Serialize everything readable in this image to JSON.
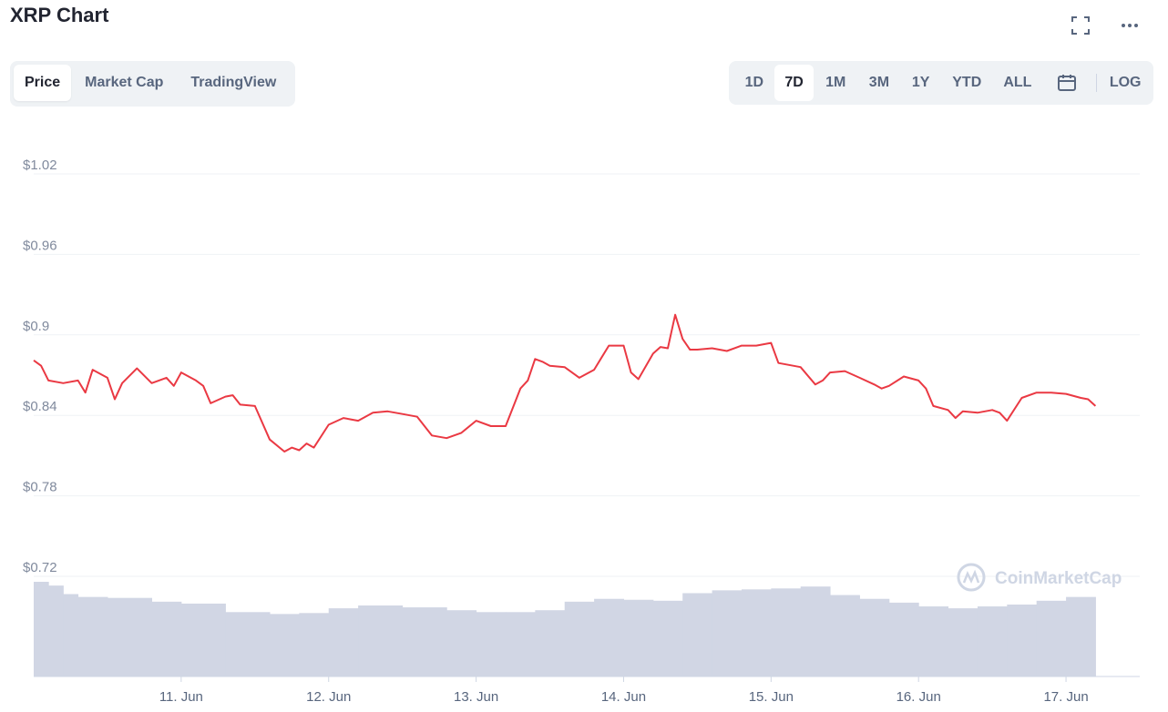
{
  "header": {
    "title": "XRP Chart",
    "fullscreen_icon": "fullscreen-icon",
    "more_icon": "more-horizontal-icon"
  },
  "tabs": [
    {
      "label": "Price",
      "active": true
    },
    {
      "label": "Market Cap",
      "active": false
    },
    {
      "label": "TradingView",
      "active": false
    }
  ],
  "ranges": [
    {
      "label": "1D",
      "active": false
    },
    {
      "label": "7D",
      "active": true
    },
    {
      "label": "1M",
      "active": false
    },
    {
      "label": "3M",
      "active": false
    },
    {
      "label": "1Y",
      "active": false
    },
    {
      "label": "YTD",
      "active": false
    },
    {
      "label": "ALL",
      "active": false
    }
  ],
  "calendar_icon": "calendar-icon",
  "log_label": "LOG",
  "watermark": "CoinMarketCap",
  "colors": {
    "line": "#ea3943",
    "volume": "#d1d6e4",
    "grid": "#eff2f5",
    "tab_bg": "#eff2f5"
  },
  "chart_data": {
    "type": "line",
    "title": "",
    "xlabel": "",
    "ylabel": "",
    "y_ticks": [
      "$1.02",
      "$0.96",
      "$0.9",
      "$0.84",
      "$0.78",
      "$0.72"
    ],
    "y_tick_values": [
      1.02,
      0.96,
      0.9,
      0.84,
      0.78,
      0.72
    ],
    "ylim": [
      0.72,
      1.02
    ],
    "x_ticks": [
      "11. Jun",
      "12. Jun",
      "13. Jun",
      "14. Jun",
      "15. Jun",
      "16. Jun",
      "17. Jun"
    ],
    "x_tick_values": [
      1,
      2,
      3,
      4,
      5,
      6,
      7
    ],
    "xlim": [
      0,
      7.5
    ],
    "grid": true,
    "series": [
      {
        "x": [
          0.0,
          0.05,
          0.1,
          0.2,
          0.3,
          0.35,
          0.4,
          0.5,
          0.55,
          0.6,
          0.7,
          0.8,
          0.9,
          0.95,
          1.0,
          1.1,
          1.15,
          1.2,
          1.3,
          1.35,
          1.4,
          1.5,
          1.6,
          1.7,
          1.75,
          1.8,
          1.85,
          1.9,
          2.0,
          2.1,
          2.15,
          2.2,
          2.3,
          2.4,
          2.5,
          2.6,
          2.7,
          2.8,
          2.9,
          3.0,
          3.1,
          3.2,
          3.3,
          3.35,
          3.4,
          3.45,
          3.5,
          3.6,
          3.7,
          3.8,
          3.85,
          3.9,
          4.0,
          4.05,
          4.1,
          4.2,
          4.25,
          4.3,
          4.35,
          4.4,
          4.45,
          4.5,
          4.6,
          4.7,
          4.8,
          4.9,
          5.0,
          5.05,
          5.1,
          5.2,
          5.3,
          5.35,
          5.4,
          5.5,
          5.6,
          5.7,
          5.75,
          5.8,
          5.9,
          6.0,
          6.05,
          6.1,
          6.2,
          6.25,
          6.3,
          6.4,
          6.5,
          6.55,
          6.6,
          6.7,
          6.8,
          6.9,
          7.0,
          7.1,
          7.15,
          7.2
        ],
        "values": [
          0.881,
          0.877,
          0.866,
          0.864,
          0.866,
          0.857,
          0.874,
          0.868,
          0.852,
          0.864,
          0.875,
          0.864,
          0.868,
          0.862,
          0.872,
          0.866,
          0.862,
          0.849,
          0.854,
          0.855,
          0.848,
          0.847,
          0.822,
          0.813,
          0.816,
          0.814,
          0.819,
          0.816,
          0.833,
          0.838,
          0.837,
          0.836,
          0.842,
          0.843,
          0.841,
          0.839,
          0.825,
          0.823,
          0.827,
          0.836,
          0.832,
          0.832,
          0.86,
          0.866,
          0.882,
          0.88,
          0.877,
          0.876,
          0.868,
          0.874,
          0.883,
          0.892,
          0.892,
          0.872,
          0.867,
          0.886,
          0.891,
          0.89,
          0.915,
          0.897,
          0.889,
          0.889,
          0.89,
          0.888,
          0.892,
          0.892,
          0.894,
          0.879,
          0.878,
          0.876,
          0.863,
          0.866,
          0.872,
          0.873,
          0.868,
          0.863,
          0.86,
          0.862,
          0.869,
          0.866,
          0.86,
          0.847,
          0.844,
          0.838,
          0.843,
          0.842,
          0.844,
          0.842,
          0.836,
          0.853,
          0.857,
          0.857,
          0.856,
          0.853,
          0.852,
          0.847
        ]
      }
    ],
    "volume": {
      "x": [
        0.0,
        0.1,
        0.2,
        0.3,
        0.5,
        0.8,
        1.0,
        1.3,
        1.6,
        1.8,
        2.0,
        2.2,
        2.5,
        2.8,
        3.0,
        3.2,
        3.4,
        3.6,
        3.8,
        4.0,
        4.2,
        4.4,
        4.6,
        4.8,
        5.0,
        5.2,
        5.4,
        5.6,
        5.8,
        6.0,
        6.2,
        6.4,
        6.6,
        6.8,
        7.0,
        7.2
      ],
      "relative": [
        1.0,
        0.96,
        0.87,
        0.84,
        0.83,
        0.79,
        0.77,
        0.68,
        0.66,
        0.67,
        0.72,
        0.75,
        0.73,
        0.7,
        0.68,
        0.68,
        0.7,
        0.79,
        0.82,
        0.81,
        0.8,
        0.88,
        0.91,
        0.92,
        0.93,
        0.95,
        0.86,
        0.82,
        0.78,
        0.74,
        0.72,
        0.74,
        0.76,
        0.8,
        0.84,
        0.8
      ]
    }
  }
}
